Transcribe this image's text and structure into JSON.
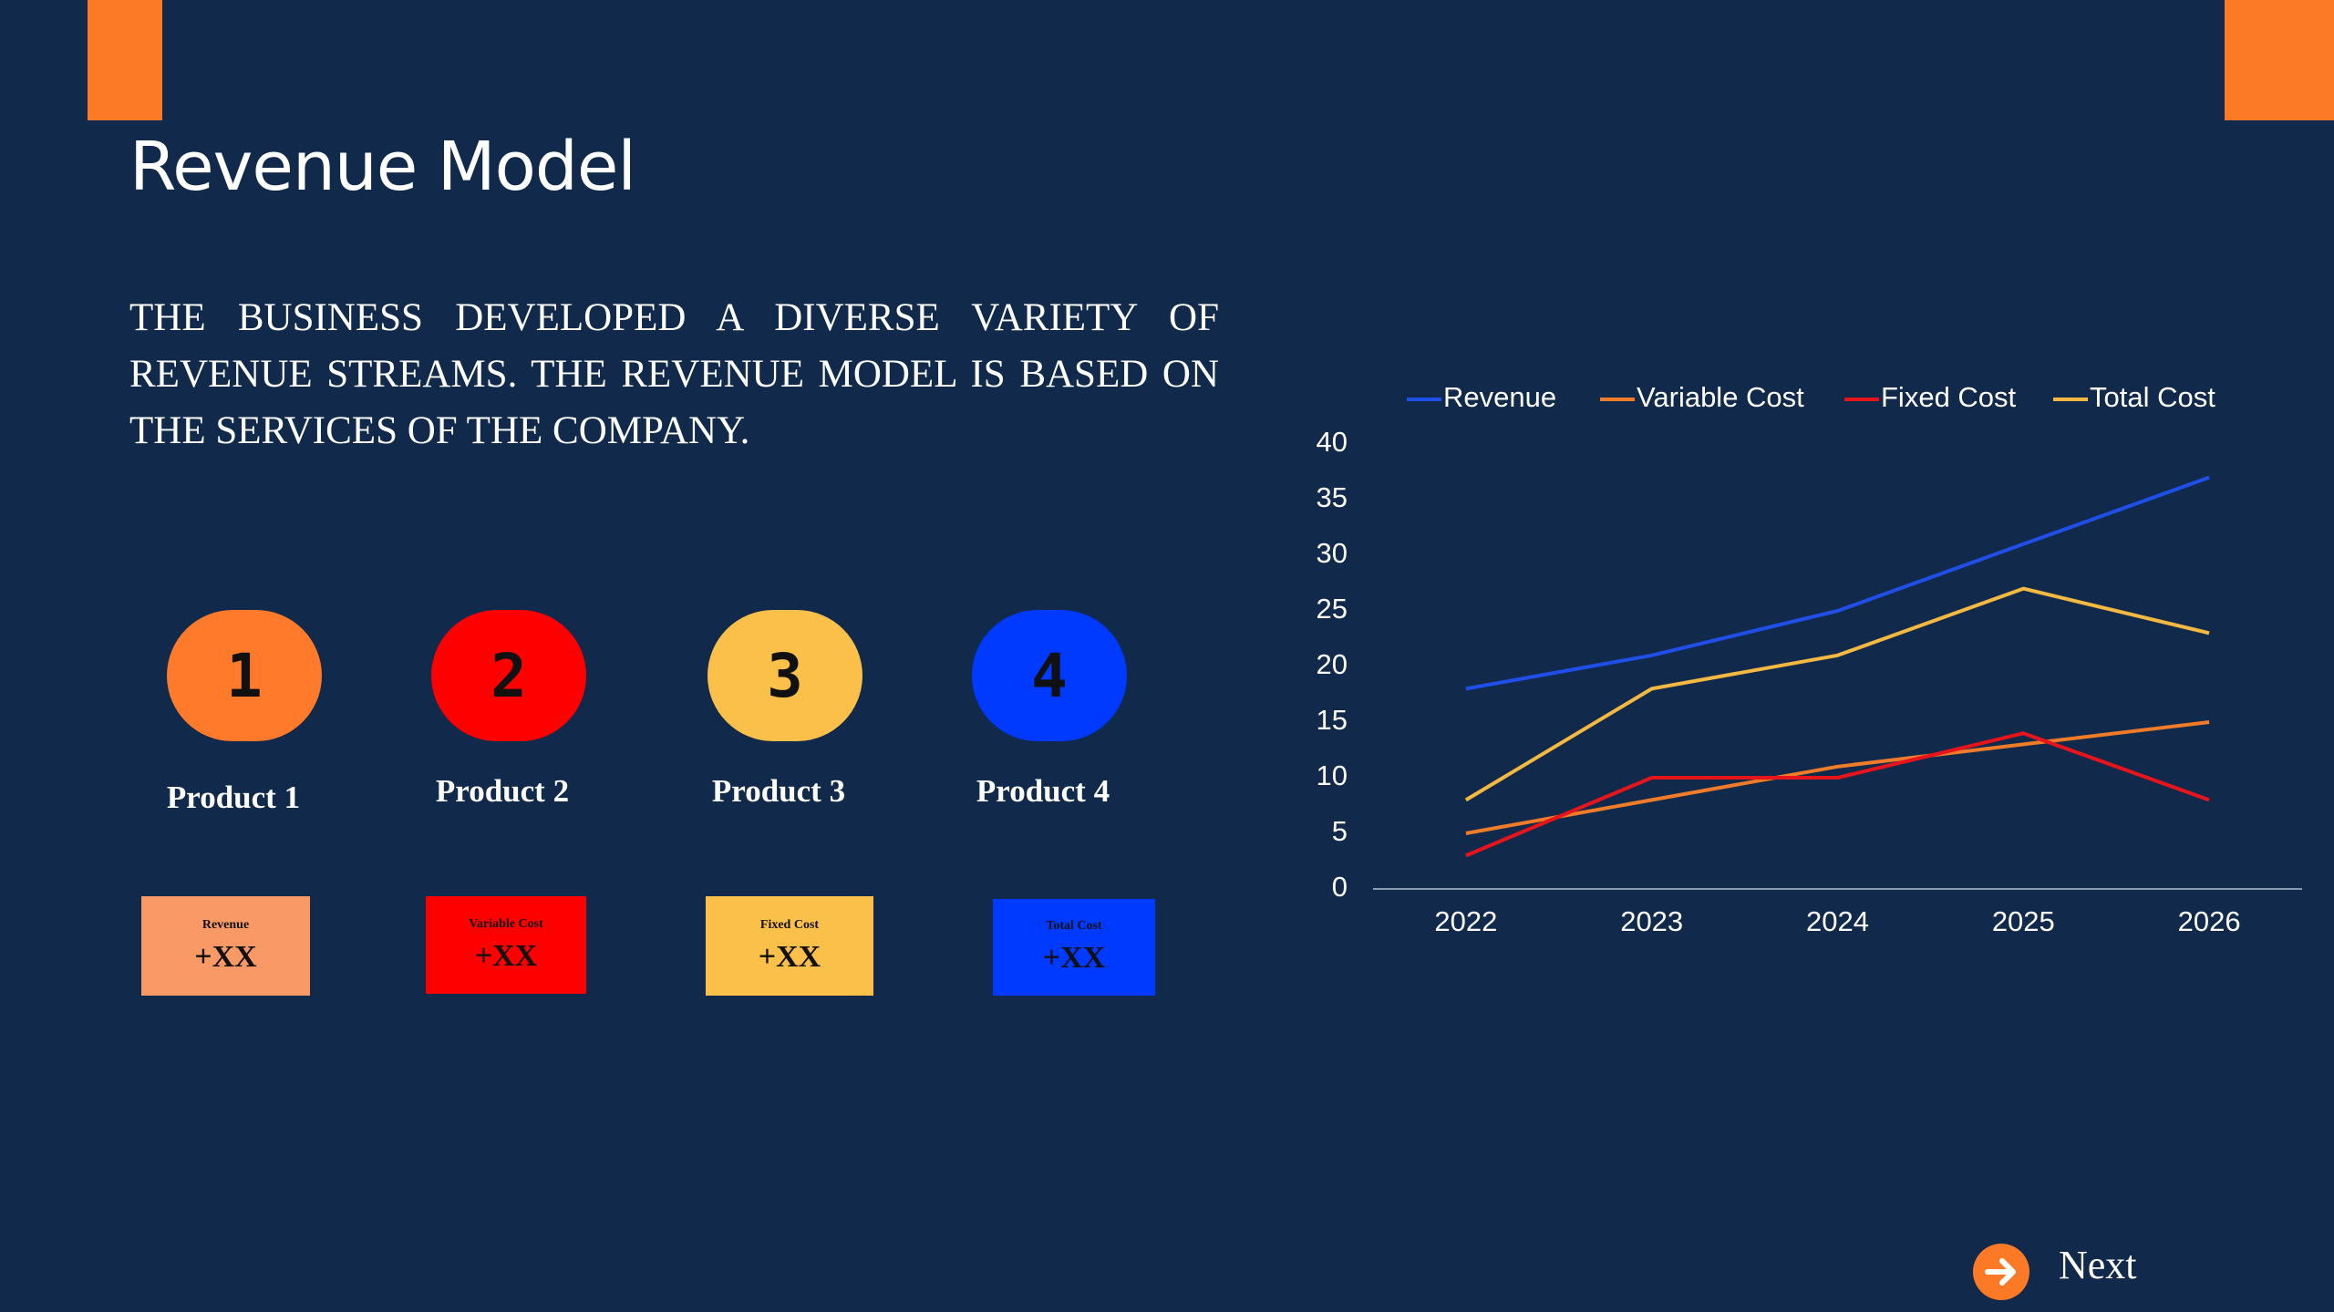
{
  "header": {
    "title": "Revenue Model"
  },
  "body": {
    "text": "THE BUSINESS DEVELOPED A DIVERSE VARIETY OF REVENUE STREAMS. THE REVENUE MODEL IS BASED ON THE SERVICES OF THE COMPANY."
  },
  "products": [
    {
      "number": "1",
      "label": "Product 1",
      "card_label": "Revenue",
      "card_value": "+XX"
    },
    {
      "number": "2",
      "label": "Product 2",
      "card_label": "Variable Cost",
      "card_value": "+XX"
    },
    {
      "number": "3",
      "label": "Product 3",
      "card_label": "Fixed Cost",
      "card_value": "+XX"
    },
    {
      "number": "4",
      "label": "Product 4",
      "card_label": "Total Cost",
      "card_value": "+XX"
    }
  ],
  "chart_data": {
    "type": "line",
    "categories": [
      "2022",
      "2023",
      "2024",
      "2025",
      "2026"
    ],
    "series": [
      {
        "name": "Revenue",
        "color": "#1f4fe8",
        "values": [
          18,
          21,
          25,
          31,
          37
        ]
      },
      {
        "name": "Variable Cost",
        "color": "#f07c2a",
        "values": [
          5,
          8,
          11,
          13,
          15
        ]
      },
      {
        "name": "Fixed Cost",
        "color": "#e8141b",
        "values": [
          3,
          10,
          10,
          14,
          8
        ]
      },
      {
        "name": "Total Cost",
        "color": "#f5b942",
        "values": [
          8,
          18,
          21,
          27,
          23
        ]
      }
    ],
    "ylim": [
      0,
      40
    ],
    "yticks": [
      0,
      5,
      10,
      15,
      20,
      25,
      30,
      35,
      40
    ],
    "grid": false,
    "legend": "top"
  },
  "navigation": {
    "next": "Next"
  }
}
